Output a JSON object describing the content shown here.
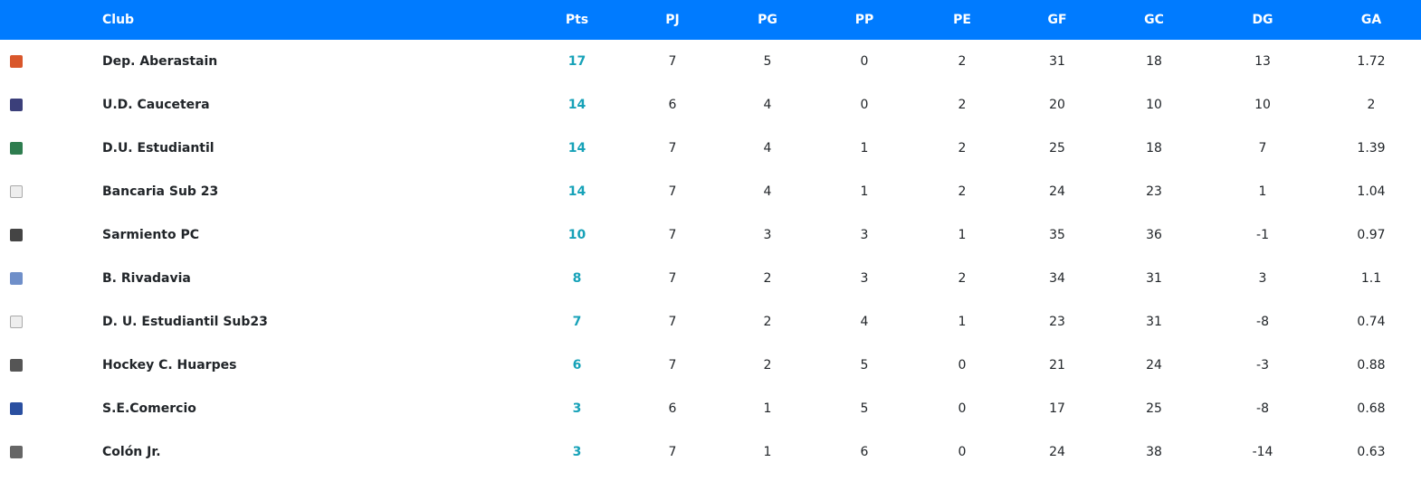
{
  "columns": [
    "",
    "Club",
    "Pts",
    "PJ",
    "PG",
    "PP",
    "PE",
    "GF",
    "GC",
    "DG",
    "GA"
  ],
  "rows": [
    {
      "logo": "shield-orange",
      "color": "#d9572b",
      "club": "Dep. Aberastain",
      "pts": "17",
      "pj": "7",
      "pg": "5",
      "pp": "0",
      "pe": "2",
      "gf": "31",
      "gc": "18",
      "dg": "13",
      "ga": "1.72"
    },
    {
      "logo": "crest-navy",
      "color": "#3b3f7a",
      "club": "U.D. Caucetera",
      "pts": "14",
      "pj": "6",
      "pg": "4",
      "pp": "0",
      "pe": "2",
      "gf": "20",
      "gc": "10",
      "dg": "10",
      "ga": "2"
    },
    {
      "logo": "crest-green",
      "color": "#2e7d4f",
      "club": "D.U. Estudiantil",
      "pts": "14",
      "pj": "7",
      "pg": "4",
      "pp": "1",
      "pe": "2",
      "gf": "25",
      "gc": "18",
      "dg": "7",
      "ga": "1.39"
    },
    {
      "logo": "broken-image",
      "color": "",
      "club": "Bancaria Sub 23",
      "pts": "14",
      "pj": "7",
      "pg": "4",
      "pp": "1",
      "pe": "2",
      "gf": "24",
      "gc": "23",
      "dg": "1",
      "ga": "1.04"
    },
    {
      "logo": "wordmark-dark",
      "color": "#444444",
      "club": "Sarmiento PC",
      "pts": "10",
      "pj": "7",
      "pg": "3",
      "pp": "3",
      "pe": "1",
      "gf": "35",
      "gc": "36",
      "dg": "-1",
      "ga": "0.97"
    },
    {
      "logo": "wordmark-blue",
      "color": "#6f8fc9",
      "club": "B. Rivadavia",
      "pts": "8",
      "pj": "7",
      "pg": "2",
      "pp": "3",
      "pe": "2",
      "gf": "34",
      "gc": "31",
      "dg": "3",
      "ga": "1.1"
    },
    {
      "logo": "broken-image",
      "color": "",
      "club": "D. U. Estudiantil Sub23",
      "pts": "7",
      "pj": "7",
      "pg": "2",
      "pp": "4",
      "pe": "1",
      "gf": "23",
      "gc": "31",
      "dg": "-8",
      "ga": "0.74"
    },
    {
      "logo": "emblem-gray",
      "color": "#555555",
      "club": "Hockey C. Huarpes",
      "pts": "6",
      "pj": "7",
      "pg": "2",
      "pp": "5",
      "pe": "0",
      "gf": "21",
      "gc": "24",
      "dg": "-3",
      "ga": "0.88"
    },
    {
      "logo": "sec-badge",
      "color": "#2a4fa0",
      "club": "S.E.Comercio",
      "pts": "3",
      "pj": "6",
      "pg": "1",
      "pp": "5",
      "pe": "0",
      "gf": "17",
      "gc": "25",
      "dg": "-8",
      "ga": "0.68"
    },
    {
      "logo": "cac-badge",
      "color": "#666666",
      "club": "Colón Jr.",
      "pts": "3",
      "pj": "7",
      "pg": "1",
      "pp": "6",
      "pe": "0",
      "gf": "24",
      "gc": "38",
      "dg": "-14",
      "ga": "0.63"
    }
  ]
}
